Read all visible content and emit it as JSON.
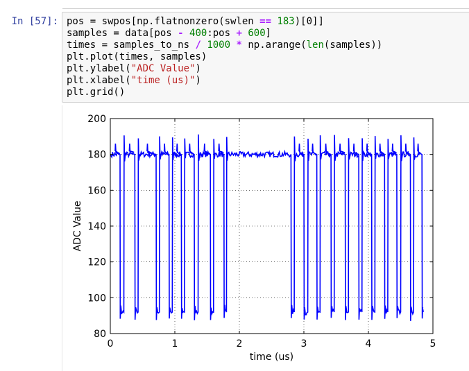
{
  "cell": {
    "prompt": "In [57]:",
    "code": {
      "line1": [
        "pos = swpos[np.flatnonzero(swlen ",
        "==",
        " ",
        "183",
        ")[0]]"
      ],
      "line2": [
        "samples = data[pos ",
        "-",
        " ",
        "400",
        ":pos ",
        "+",
        " ",
        "600",
        "]"
      ],
      "line3": [
        "times = samples_to_ns ",
        "/",
        " ",
        "1000",
        " ",
        "*",
        " np.arange(",
        "len",
        "(samples))"
      ],
      "line4": "plt.plot(times, samples)",
      "line5": [
        "plt.ylabel(",
        "\"ADC Value\"",
        ")"
      ],
      "line6": [
        "plt.xlabel(",
        "\"time (us)\"",
        ")"
      ],
      "line7": "plt.grid()"
    }
  },
  "chart_data": {
    "type": "line",
    "xlabel": "time (us)",
    "ylabel": "ADC Value",
    "xlim": [
      0,
      5
    ],
    "ylim": [
      80,
      200
    ],
    "xticks": [
      0,
      1,
      2,
      3,
      4,
      5
    ],
    "yticks": [
      80,
      100,
      120,
      140,
      160,
      180,
      200
    ],
    "grid": true,
    "line_color": "#0000ff",
    "high_level": 180,
    "low_level": 92,
    "pulse_overshoot": 190,
    "pulse_undershoot": 83,
    "idle_segment": [
      2.0,
      2.8
    ],
    "x_end": 4.85,
    "transitions": [
      [
        0.0,
        "high"
      ],
      [
        0.15,
        "low"
      ],
      [
        0.21,
        "high"
      ],
      [
        0.38,
        "low"
      ],
      [
        0.43,
        "high"
      ],
      [
        0.71,
        "low"
      ],
      [
        0.76,
        "high"
      ],
      [
        0.91,
        "low"
      ],
      [
        0.96,
        "high"
      ],
      [
        1.1,
        "low"
      ],
      [
        1.15,
        "high"
      ],
      [
        1.3,
        "low"
      ],
      [
        1.36,
        "high"
      ],
      [
        1.55,
        "low"
      ],
      [
        1.6,
        "high"
      ],
      [
        1.76,
        "low"
      ],
      [
        1.8,
        "high"
      ],
      [
        2.8,
        "low"
      ],
      [
        2.85,
        "high"
      ],
      [
        3.0,
        "low"
      ],
      [
        3.06,
        "high"
      ],
      [
        3.2,
        "low"
      ],
      [
        3.25,
        "high"
      ],
      [
        3.42,
        "low"
      ],
      [
        3.47,
        "high"
      ],
      [
        3.64,
        "low"
      ],
      [
        3.69,
        "high"
      ],
      [
        3.85,
        "low"
      ],
      [
        3.9,
        "high"
      ],
      [
        4.05,
        "low"
      ],
      [
        4.1,
        "high"
      ],
      [
        4.25,
        "low"
      ],
      [
        4.3,
        "high"
      ],
      [
        4.44,
        "low"
      ],
      [
        4.5,
        "high"
      ],
      [
        4.65,
        "low"
      ],
      [
        4.7,
        "high"
      ],
      [
        4.83,
        "low"
      ]
    ]
  }
}
